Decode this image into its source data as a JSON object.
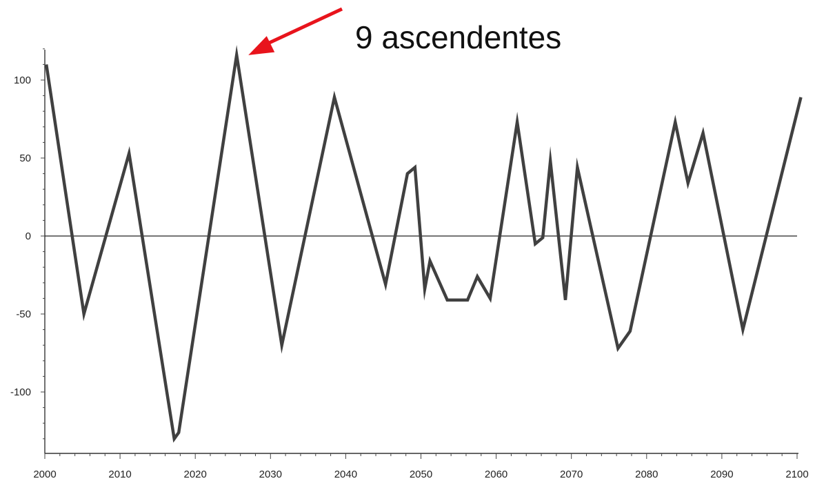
{
  "chart_data": {
    "type": "line",
    "title": "",
    "xlabel": "",
    "ylabel": "",
    "xlim": [
      2000,
      2100
    ],
    "ylim": [
      -133,
      122
    ],
    "x_ticks": [
      "2000",
      "2010",
      "2020",
      "2030",
      "2040",
      "2050",
      "2060",
      "2070",
      "2080",
      "2090",
      "2100"
    ],
    "y_ticks": [
      "100",
      "50",
      "0",
      "-50",
      "-100"
    ],
    "zero_line": true,
    "grid": false,
    "legend": "none",
    "series": [
      {
        "color": "#404040",
        "x": [
          2000.2,
          2005.2,
          2011.2,
          2017.2,
          2017.8,
          2025.5,
          2031.5,
          2038.5,
          2045.3,
          2048.2,
          2049.2,
          2050.5,
          2051.2,
          2053.5,
          2056.2,
          2057.5,
          2059.2,
          2062.8,
          2065.2,
          2066.2,
          2067.2,
          2069.2,
          2070.8,
          2076.2,
          2077.8,
          2083.8,
          2085.5,
          2087.5,
          2092.8,
          2100.5
        ],
        "y": [
          110,
          -50,
          53,
          -130,
          -126,
          116,
          -70,
          89,
          -31,
          40,
          44,
          -34,
          -16,
          -41,
          -41,
          -26,
          -40,
          73,
          -5,
          -1,
          48,
          -41,
          44,
          -72,
          -61,
          73,
          34,
          66,
          -60,
          89
        ]
      }
    ],
    "annotations": [
      {
        "text": "9 ascendentes",
        "points_to": {
          "x": 2025.5,
          "y": 116
        },
        "arrow_color": "#e8141c"
      }
    ]
  }
}
